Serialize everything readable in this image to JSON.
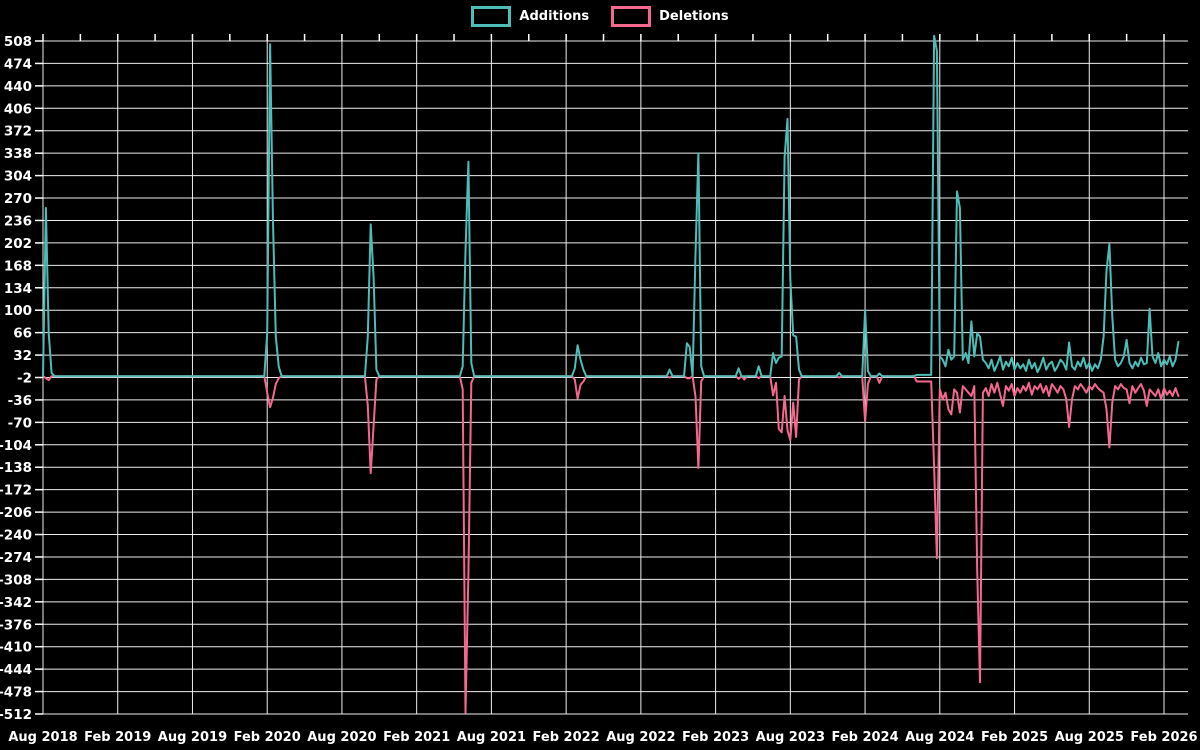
{
  "legend": {
    "items": [
      {
        "label": "Additions",
        "color": "#4cbdb7"
      },
      {
        "label": "Deletions",
        "color": "#f4688e"
      }
    ]
  },
  "chart_data": {
    "type": "line",
    "title": "",
    "xlabel": "",
    "ylabel": "",
    "background": "#000000",
    "grid_color": "#ededed",
    "text_color": "#ffffff",
    "legend_position": "top-center",
    "x_tick_labels": [
      "Aug 2018",
      "Feb 2019",
      "Aug 2019",
      "Feb 2020",
      "Aug 2020",
      "Feb 2021",
      "Aug 2021",
      "Feb 2022",
      "Aug 2022",
      "Feb 2023",
      "Aug 2023",
      "Feb 2024",
      "Aug 2024",
      "Feb 2025",
      "Aug 2025",
      "Feb 2026"
    ],
    "y_ticks": [
      508,
      474,
      440,
      406,
      372,
      338,
      304,
      270,
      236,
      202,
      168,
      134,
      100,
      66,
      32,
      -2,
      -36,
      -70,
      -104,
      -138,
      -172,
      -206,
      -240,
      -274,
      -308,
      -342,
      -376,
      -410,
      -444,
      -478,
      -512
    ],
    "ylim": [
      -512,
      508
    ],
    "grid": true,
    "weeks_per_x_tick": 26,
    "total_weeks": 396,
    "baseline_value": 0,
    "series": [
      {
        "name": "Additions",
        "color": "#4cbdb7"
      },
      {
        "name": "Deletions",
        "color": "#f4688e"
      }
    ],
    "note": "weekly commit additions (positive) and deletions (negative); weeks not listed in events are 0,0",
    "events": [
      [
        1,
        255,
        -3
      ],
      [
        2,
        65,
        -6
      ],
      [
        3,
        5,
        0
      ],
      [
        78,
        65,
        -25
      ],
      [
        79,
        503,
        -47
      ],
      [
        80,
        240,
        -33
      ],
      [
        81,
        60,
        -12
      ],
      [
        82,
        15,
        -3
      ],
      [
        113,
        60,
        -45
      ],
      [
        114,
        230,
        -147
      ],
      [
        115,
        150,
        -75
      ],
      [
        116,
        10,
        -5
      ],
      [
        146,
        15,
        -20
      ],
      [
        147,
        190,
        -510
      ],
      [
        148,
        325,
        -300
      ],
      [
        149,
        20,
        -10
      ],
      [
        185,
        12,
        -5
      ],
      [
        186,
        47,
        -34
      ],
      [
        187,
        25,
        -13
      ],
      [
        188,
        10,
        -8
      ],
      [
        218,
        10,
        -2
      ],
      [
        224,
        50,
        -3
      ],
      [
        225,
        44,
        -3
      ],
      [
        227,
        185,
        -31
      ],
      [
        228,
        338,
        -139
      ],
      [
        229,
        15,
        -8
      ],
      [
        242,
        12,
        -4
      ],
      [
        244,
        0,
        -5
      ],
      [
        249,
        15,
        -3
      ],
      [
        254,
        35,
        -29
      ],
      [
        255,
        20,
        -10
      ],
      [
        256,
        28,
        -80
      ],
      [
        257,
        30,
        -85
      ],
      [
        258,
        332,
        -30
      ],
      [
        259,
        390,
        -82
      ],
      [
        260,
        148,
        -97
      ],
      [
        261,
        62,
        -40
      ],
      [
        262,
        60,
        -92
      ],
      [
        263,
        10,
        -5
      ],
      [
        277,
        5,
        -2
      ],
      [
        286,
        100,
        -69
      ],
      [
        287,
        8,
        -12
      ],
      [
        291,
        4,
        -10
      ],
      [
        304,
        2,
        -8
      ],
      [
        305,
        2,
        -8
      ],
      [
        306,
        2,
        -8
      ],
      [
        307,
        2,
        -8
      ],
      [
        308,
        2,
        -8
      ],
      [
        309,
        2,
        -8
      ],
      [
        310,
        516,
        -137
      ],
      [
        311,
        493,
        -276
      ],
      [
        312,
        30,
        -20
      ],
      [
        313,
        25,
        -35
      ],
      [
        314,
        15,
        -25
      ],
      [
        315,
        40,
        -50
      ],
      [
        316,
        25,
        -58
      ],
      [
        317,
        30,
        -20
      ],
      [
        318,
        280,
        -25
      ],
      [
        319,
        255,
        -55
      ],
      [
        320,
        25,
        -15
      ],
      [
        321,
        35,
        -20
      ],
      [
        322,
        20,
        -25
      ],
      [
        323,
        83,
        -30
      ],
      [
        324,
        30,
        -15
      ],
      [
        325,
        65,
        -295
      ],
      [
        326,
        60,
        -464
      ],
      [
        327,
        25,
        -25
      ],
      [
        328,
        20,
        -18
      ],
      [
        329,
        12,
        -30
      ],
      [
        330,
        25,
        -12
      ],
      [
        331,
        8,
        -25
      ],
      [
        332,
        18,
        -10
      ],
      [
        333,
        30,
        -28
      ],
      [
        334,
        10,
        -45
      ],
      [
        335,
        22,
        -15
      ],
      [
        336,
        15,
        -22
      ],
      [
        337,
        28,
        -12
      ],
      [
        338,
        10,
        -30
      ],
      [
        339,
        20,
        -18
      ],
      [
        340,
        12,
        -25
      ],
      [
        341,
        18,
        -15
      ],
      [
        342,
        8,
        -22
      ],
      [
        343,
        25,
        -10
      ],
      [
        344,
        12,
        -28
      ],
      [
        345,
        20,
        -15
      ],
      [
        346,
        6,
        -20
      ],
      [
        347,
        15,
        -12
      ],
      [
        348,
        28,
        -25
      ],
      [
        349,
        10,
        -15
      ],
      [
        350,
        18,
        -30
      ],
      [
        351,
        22,
        -12
      ],
      [
        352,
        8,
        -18
      ],
      [
        353,
        15,
        -25
      ],
      [
        354,
        25,
        -15
      ],
      [
        355,
        20,
        -20
      ],
      [
        356,
        10,
        -35
      ],
      [
        357,
        51,
        -77
      ],
      [
        358,
        15,
        -35
      ],
      [
        359,
        10,
        -15
      ],
      [
        360,
        22,
        -20
      ],
      [
        361,
        15,
        -12
      ],
      [
        362,
        28,
        -18
      ],
      [
        363,
        12,
        -25
      ],
      [
        364,
        20,
        -15
      ],
      [
        365,
        8,
        -20
      ],
      [
        366,
        18,
        -12
      ],
      [
        367,
        12,
        -18
      ],
      [
        368,
        25,
        -22
      ],
      [
        369,
        60,
        -25
      ],
      [
        370,
        160,
        -50
      ],
      [
        371,
        200,
        -108
      ],
      [
        372,
        90,
        -40
      ],
      [
        373,
        25,
        -15
      ],
      [
        374,
        15,
        -20
      ],
      [
        375,
        20,
        -12
      ],
      [
        376,
        30,
        -18
      ],
      [
        377,
        55,
        -20
      ],
      [
        378,
        20,
        -41
      ],
      [
        379,
        12,
        -15
      ],
      [
        380,
        22,
        -25
      ],
      [
        381,
        15,
        -18
      ],
      [
        382,
        28,
        -12
      ],
      [
        383,
        18,
        -22
      ],
      [
        384,
        20,
        -45
      ],
      [
        385,
        102,
        -20
      ],
      [
        386,
        30,
        -25
      ],
      [
        387,
        20,
        -30
      ],
      [
        388,
        35,
        -20
      ],
      [
        389,
        15,
        -35
      ],
      [
        390,
        25,
        -18
      ],
      [
        391,
        18,
        -28
      ],
      [
        392,
        30,
        -22
      ],
      [
        393,
        15,
        -30
      ],
      [
        394,
        25,
        -18
      ],
      [
        395,
        52,
        -30
      ]
    ]
  }
}
